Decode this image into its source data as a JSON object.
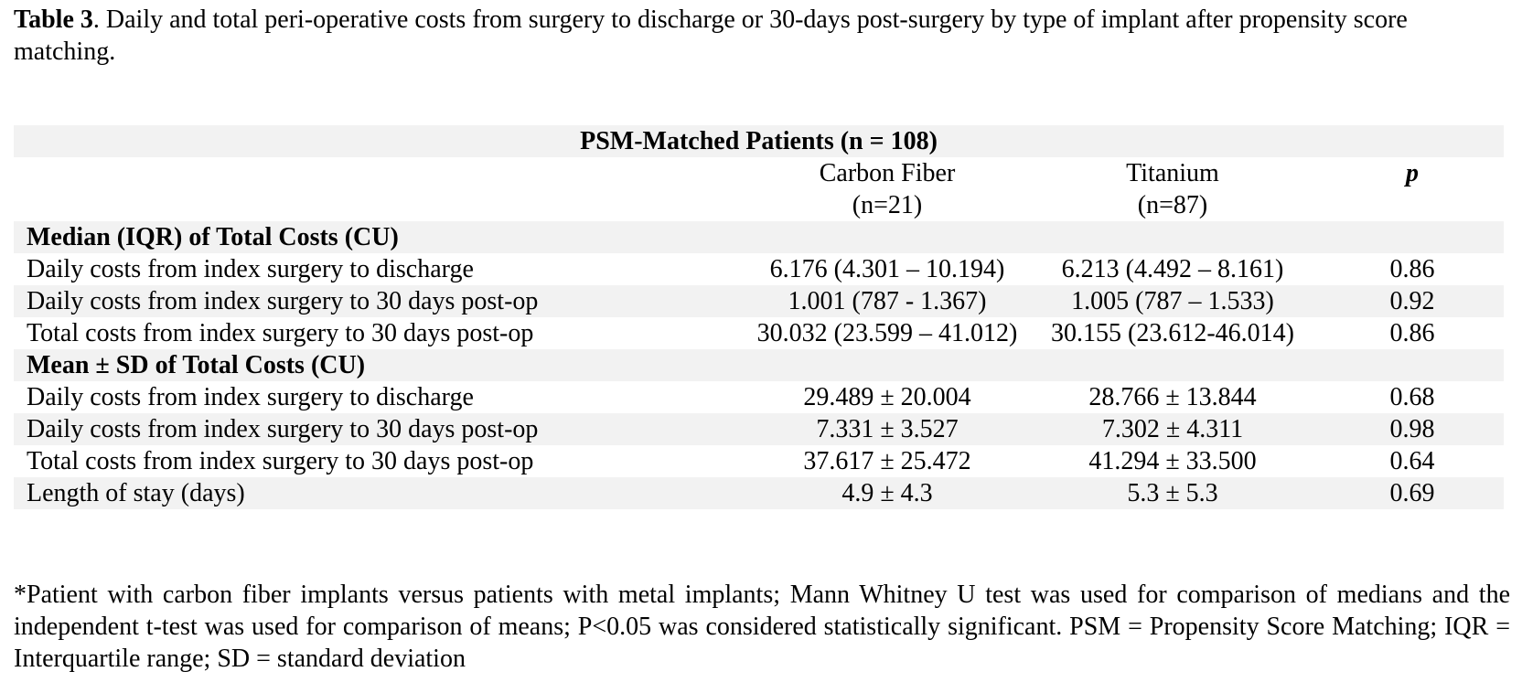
{
  "caption": {
    "label": "Table 3",
    "text": ". Daily and total peri-operative costs from surgery to discharge or 30-days post-surgery by type of implant after propensity score matching."
  },
  "table": {
    "title": "PSM-Matched Patients (n = 108)",
    "columns": {
      "carbon": {
        "name": "Carbon Fiber",
        "n": "(n=21)"
      },
      "titanium": {
        "name": "Titanium",
        "n": "(n=87)"
      },
      "p": "p"
    },
    "sections": [
      {
        "heading": "Median (IQR) of Total Costs (CU)",
        "rows": [
          {
            "label": "Daily costs from index surgery to discharge",
            "carbon": "6.176 (4.301 – 10.194)",
            "titanium": "6.213 (4.492 – 8.161)",
            "p": "0.86"
          },
          {
            "label": "Daily costs from index surgery to 30 days post-op",
            "carbon": "1.001 (787 - 1.367)",
            "titanium": "1.005 (787 – 1.533)",
            "p": "0.92"
          },
          {
            "label": "Total costs from index surgery to 30 days post-op",
            "carbon": "30.032 (23.599 – 41.012)",
            "titanium": "30.155 (23.612-46.014)",
            "p": "0.86"
          }
        ]
      },
      {
        "heading": "Mean ± SD of Total Costs (CU)",
        "rows": [
          {
            "label": "Daily costs from index surgery to discharge",
            "carbon": "29.489 ± 20.004",
            "titanium": "28.766 ± 13.844",
            "p": "0.68"
          },
          {
            "label": "Daily costs from index surgery to 30 days post-op",
            "carbon": "7.331 ± 3.527",
            "titanium": "7.302 ± 4.311",
            "p": "0.98"
          },
          {
            "label": "Total costs from index surgery to 30 days post-op",
            "carbon": "37.617 ± 25.472",
            "titanium": "41.294 ± 33.500",
            "p": "0.64"
          },
          {
            "label": "Length of stay (days)",
            "carbon": "4.9 ± 4.3",
            "titanium": "5.3 ± 5.3",
            "p": "0.69"
          }
        ]
      }
    ]
  },
  "footnote": "*Patient with carbon fiber implants versus patients with metal implants; Mann Whitney U test was used for comparison of medians and the independent t-test was used for comparison of means; P<0.05 was considered statistically significant. PSM = Propensity Score Matching; IQR = Interquartile range; SD = standard deviation",
  "colors": {
    "row_shade": "#f2f2f2",
    "text": "#000000"
  }
}
